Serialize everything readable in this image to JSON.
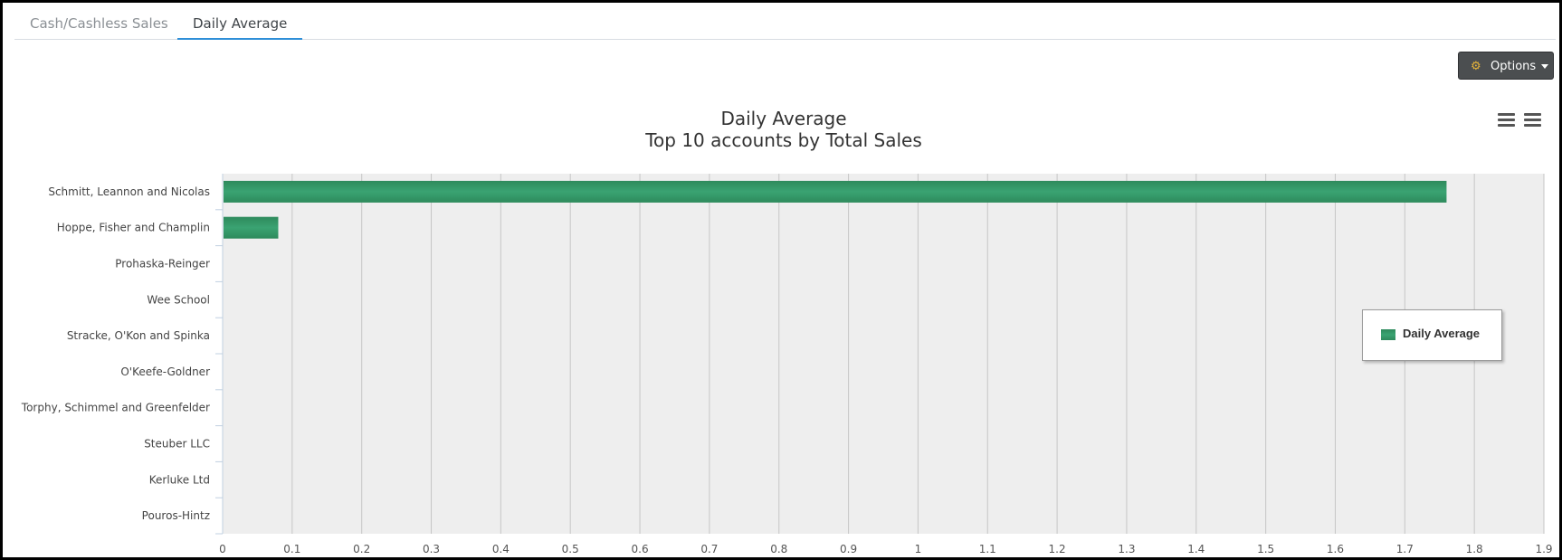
{
  "tabs": [
    {
      "label": "Cash/Cashless Sales",
      "active": false
    },
    {
      "label": "Daily Average",
      "active": true
    }
  ],
  "toolbar": {
    "options_label": "Options"
  },
  "icons": {
    "options": "gear-icon",
    "menu": "hamburger-menu-icon"
  },
  "colors": {
    "bar": "#2e8a5c",
    "plot_background": "#eeeeee",
    "active_tab": "#2f8fd8",
    "options_button": "#4b4e50"
  },
  "chart_data": {
    "type": "bar",
    "orientation": "horizontal",
    "title": "Daily Average",
    "subtitle": "Top 10 accounts by Total Sales",
    "categories": [
      "Schmitt, Leannon and Nicolas",
      "Hoppe, Fisher and Champlin",
      "Prohaska-Reinger",
      "Wee School",
      "Stracke, O'Kon and Spinka",
      "O'Keefe-Goldner",
      "Torphy, Schimmel and Greenfelder",
      "Steuber LLC",
      "Kerluke Ltd",
      "Pouros-Hintz"
    ],
    "series": [
      {
        "name": "Daily Average",
        "values": [
          1.76,
          0.08,
          0,
          0,
          0,
          0,
          0,
          0,
          0,
          0
        ]
      }
    ],
    "xlim": [
      0,
      1.9
    ],
    "xticks": [
      "0",
      "0.1",
      "0.2",
      "0.3",
      "0.4",
      "0.5",
      "0.6",
      "0.7",
      "0.8",
      "0.9",
      "1",
      "1.1",
      "1.2",
      "1.3",
      "1.4",
      "1.5",
      "1.6",
      "1.7",
      "1.8",
      "1.9"
    ],
    "grid": true,
    "legend_position": "right"
  }
}
